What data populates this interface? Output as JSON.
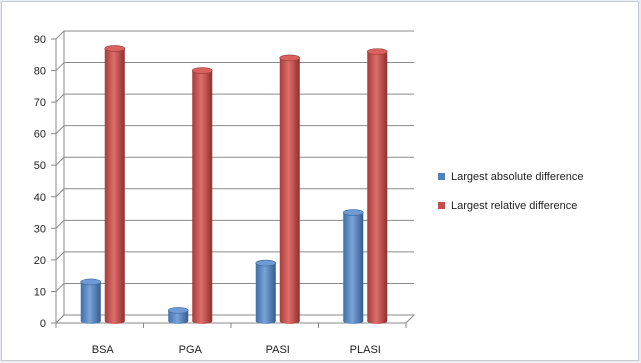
{
  "chart_data": {
    "type": "bar",
    "categories": [
      "BSA",
      "PGA",
      "PASI",
      "PLASI"
    ],
    "series": [
      {
        "name": "Largest absolute difference",
        "values": [
          13,
          4,
          19,
          35
        ],
        "color": "#4f81bd"
      },
      {
        "name": "Largest relative difference",
        "values": [
          87,
          80,
          84,
          86
        ],
        "color": "#c0504d"
      }
    ],
    "ylim": [
      0,
      90
    ],
    "yticks": [
      0,
      10,
      20,
      30,
      40,
      50,
      60,
      70,
      80,
      90
    ],
    "grid": true,
    "legend": "right",
    "three_d": true
  }
}
